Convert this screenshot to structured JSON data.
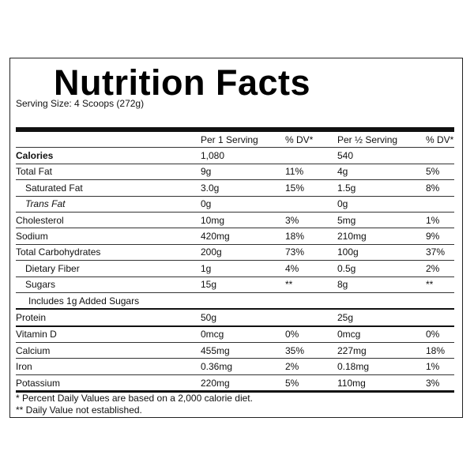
{
  "label": {
    "title": "Nutrition Facts",
    "serving_size": "Serving Size: 4 Scoops (272g)",
    "columns": {
      "per_serving": "Per 1 Serving",
      "dv1": "% DV*",
      "per_half": "Per ½ Serving",
      "dv2": "% DV*"
    },
    "rows": [
      {
        "name": "Calories",
        "v1": "1,080",
        "d1": "",
        "v2": "540",
        "d2": ""
      },
      {
        "name": "Total Fat",
        "v1": "9g",
        "d1": "11%",
        "v2": "4g",
        "d2": "5%"
      },
      {
        "name": "Saturated Fat",
        "v1": "3.0g",
        "d1": "15%",
        "v2": "1.5g",
        "d2": "8%"
      },
      {
        "name": "Trans Fat",
        "v1": "0g",
        "d1": "",
        "v2": "0g",
        "d2": ""
      },
      {
        "name": "Cholesterol",
        "v1": "10mg",
        "d1": "3%",
        "v2": "5mg",
        "d2": "1%"
      },
      {
        "name": "Sodium",
        "v1": "420mg",
        "d1": "18%",
        "v2": "210mg",
        "d2": "9%"
      },
      {
        "name": "Total Carbohydrates",
        "v1": "200g",
        "d1": "73%",
        "v2": "100g",
        "d2": "37%"
      },
      {
        "name": "Dietary Fiber",
        "v1": "1g",
        "d1": "4%",
        "v2": "0.5g",
        "d2": "2%"
      },
      {
        "name": "Sugars",
        "v1": "15g",
        "d1": "**",
        "v2": "8g",
        "d2": "**"
      },
      {
        "name": "Includes 1g Added Sugars"
      },
      {
        "name": "Protein",
        "v1": "50g",
        "d1": "",
        "v2": "25g",
        "d2": ""
      },
      {
        "name": "Vitamin D",
        "v1": "0mcg",
        "d1": "0%",
        "v2": "0mcg",
        "d2": "0%"
      },
      {
        "name": "Calcium",
        "v1": "455mg",
        "d1": "35%",
        "v2": "227mg",
        "d2": "18%"
      },
      {
        "name": "Iron",
        "v1": "0.36mg",
        "d1": "2%",
        "v2": "0.18mg",
        "d2": "1%"
      },
      {
        "name": "Potassium",
        "v1": "220mg",
        "d1": "5%",
        "v2": "110mg",
        "d2": "3%"
      }
    ],
    "footnotes": [
      "* Percent Daily Values are based on a 2,000 calorie diet.",
      "** Daily Value not established."
    ]
  }
}
